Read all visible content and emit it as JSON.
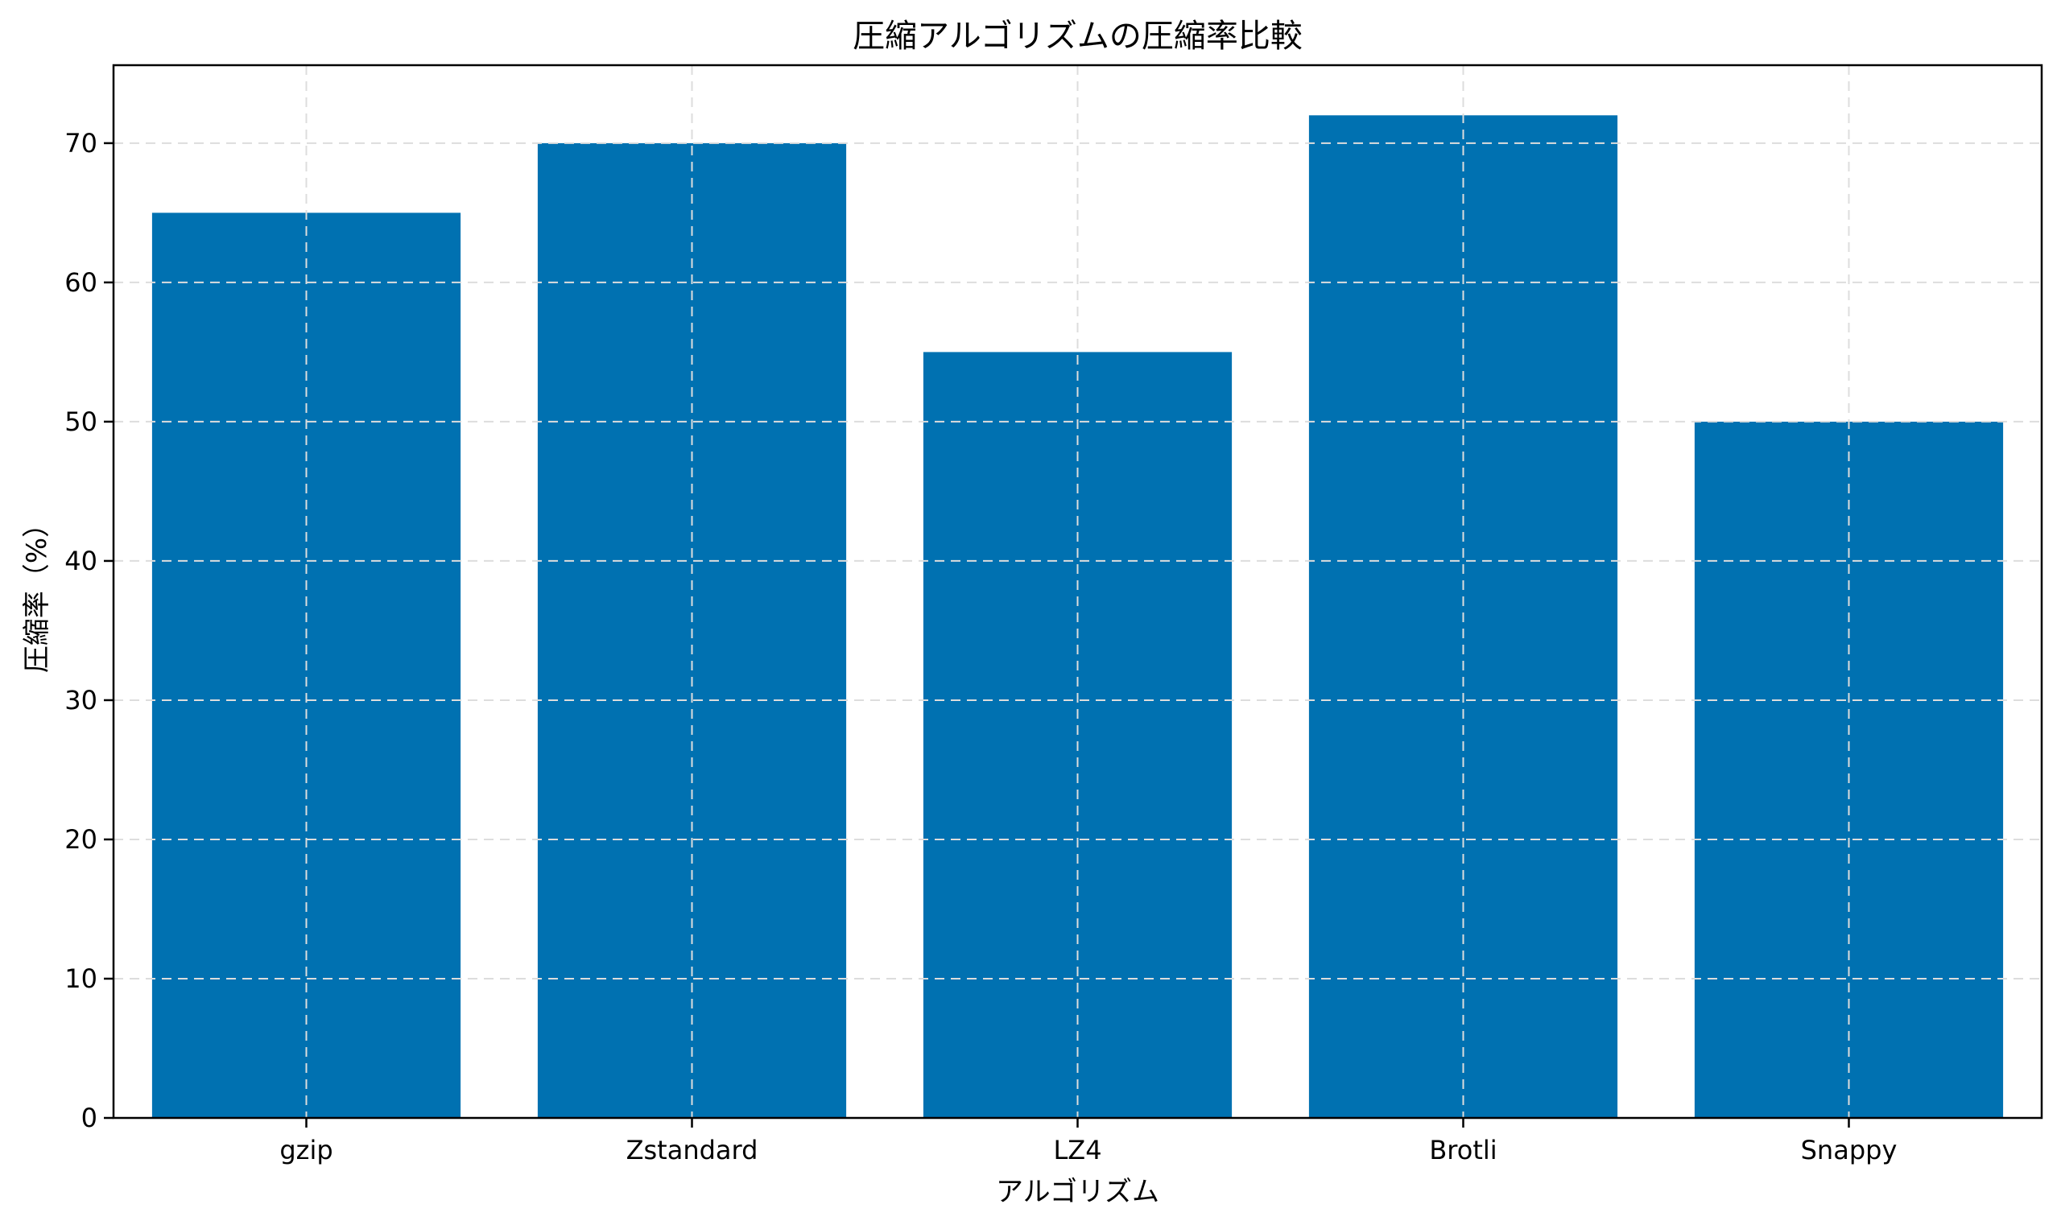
{
  "chart_data": {
    "type": "bar",
    "title": "圧縮アルゴリズムの圧縮率比較",
    "xlabel": "アルゴリズム",
    "ylabel": "圧縮率（%）",
    "categories": [
      "gzip",
      "Zstandard",
      "LZ4",
      "Brotli",
      "Snappy"
    ],
    "values": [
      65,
      70,
      55,
      72,
      50
    ],
    "ylim": [
      0,
      75.6
    ],
    "yticks": [
      0,
      10,
      20,
      30,
      40,
      50,
      60,
      70
    ],
    "grid": true,
    "bar_color": "#0071b1"
  }
}
